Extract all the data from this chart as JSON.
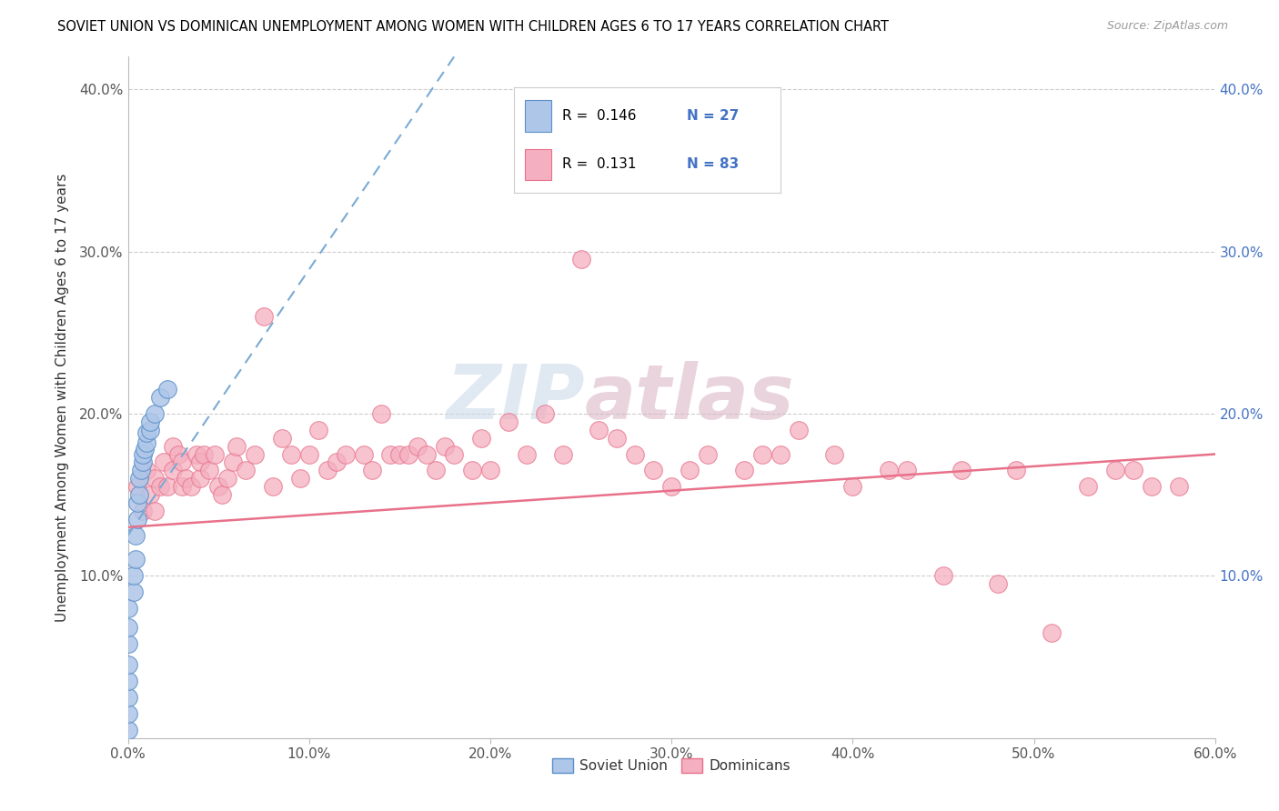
{
  "title": "SOVIET UNION VS DOMINICAN UNEMPLOYMENT AMONG WOMEN WITH CHILDREN AGES 6 TO 17 YEARS CORRELATION CHART",
  "source": "Source: ZipAtlas.com",
  "ylabel": "Unemployment Among Women with Children Ages 6 to 17 years",
  "xlim": [
    0.0,
    0.6
  ],
  "ylim": [
    0.0,
    0.42
  ],
  "xticks": [
    0.0,
    0.1,
    0.2,
    0.3,
    0.4,
    0.5,
    0.6
  ],
  "yticks": [
    0.0,
    0.1,
    0.2,
    0.3,
    0.4
  ],
  "xticklabels": [
    "0.0%",
    "10.0%",
    "20.0%",
    "30.0%",
    "40.0%",
    "50.0%",
    "60.0%"
  ],
  "yticklabels_left": [
    "",
    "10.0%",
    "20.0%",
    "30.0%",
    "40.0%"
  ],
  "yticklabels_right": [
    "10.0%",
    "20.0%",
    "30.0%",
    "40.0%"
  ],
  "soviet_color": "#aec6e8",
  "dominican_color": "#f4afc0",
  "soviet_edge": "#5b8fc9",
  "dominican_edge": "#e8718a",
  "trendline_blue": "#7aaad4",
  "trendline_pink": "#e8718a",
  "blue_text": "#4472c4",
  "watermark_color": "#c8d8e8",
  "watermark_color2": "#d8b0c0",
  "soviet_x": [
    0.0,
    0.0,
    0.0,
    0.0,
    0.0,
    0.0,
    0.0,
    0.0,
    0.003,
    0.003,
    0.004,
    0.004,
    0.005,
    0.005,
    0.006,
    0.006,
    0.007,
    0.008,
    0.008,
    0.009,
    0.01,
    0.01,
    0.012,
    0.012,
    0.015,
    0.018,
    0.022
  ],
  "soviet_y": [
    0.005,
    0.015,
    0.025,
    0.035,
    0.045,
    0.058,
    0.068,
    0.08,
    0.09,
    0.1,
    0.11,
    0.125,
    0.135,
    0.145,
    0.15,
    0.16,
    0.165,
    0.17,
    0.175,
    0.178,
    0.182,
    0.188,
    0.19,
    0.195,
    0.2,
    0.21,
    0.215
  ],
  "dom_x": [
    0.005,
    0.008,
    0.01,
    0.012,
    0.015,
    0.015,
    0.018,
    0.02,
    0.022,
    0.025,
    0.025,
    0.028,
    0.03,
    0.03,
    0.032,
    0.035,
    0.038,
    0.04,
    0.04,
    0.042,
    0.045,
    0.048,
    0.05,
    0.052,
    0.055,
    0.058,
    0.06,
    0.065,
    0.07,
    0.075,
    0.08,
    0.085,
    0.09,
    0.095,
    0.1,
    0.105,
    0.11,
    0.115,
    0.12,
    0.13,
    0.135,
    0.14,
    0.145,
    0.15,
    0.155,
    0.16,
    0.165,
    0.17,
    0.175,
    0.18,
    0.19,
    0.195,
    0.2,
    0.21,
    0.22,
    0.23,
    0.24,
    0.25,
    0.26,
    0.27,
    0.28,
    0.29,
    0.3,
    0.31,
    0.32,
    0.34,
    0.35,
    0.36,
    0.37,
    0.39,
    0.4,
    0.42,
    0.43,
    0.45,
    0.46,
    0.48,
    0.49,
    0.51,
    0.53,
    0.545,
    0.555,
    0.565,
    0.58
  ],
  "dom_y": [
    0.155,
    0.14,
    0.165,
    0.15,
    0.14,
    0.16,
    0.155,
    0.17,
    0.155,
    0.165,
    0.18,
    0.175,
    0.155,
    0.17,
    0.16,
    0.155,
    0.175,
    0.16,
    0.17,
    0.175,
    0.165,
    0.175,
    0.155,
    0.15,
    0.16,
    0.17,
    0.18,
    0.165,
    0.175,
    0.26,
    0.155,
    0.185,
    0.175,
    0.16,
    0.175,
    0.19,
    0.165,
    0.17,
    0.175,
    0.175,
    0.165,
    0.2,
    0.175,
    0.175,
    0.175,
    0.18,
    0.175,
    0.165,
    0.18,
    0.175,
    0.165,
    0.185,
    0.165,
    0.195,
    0.175,
    0.2,
    0.175,
    0.295,
    0.19,
    0.185,
    0.175,
    0.165,
    0.155,
    0.165,
    0.175,
    0.165,
    0.175,
    0.175,
    0.19,
    0.175,
    0.155,
    0.165,
    0.165,
    0.1,
    0.165,
    0.095,
    0.165,
    0.065,
    0.155,
    0.165,
    0.165,
    0.155,
    0.155
  ],
  "dom_trendline_x0": 0.0,
  "dom_trendline_x1": 0.6,
  "dom_trendline_y0": 0.13,
  "dom_trendline_y1": 0.175,
  "sov_trendline_x0": 0.0,
  "sov_trendline_x1": 0.18,
  "sov_trendline_y0": 0.125,
  "sov_trendline_y1": 0.42
}
